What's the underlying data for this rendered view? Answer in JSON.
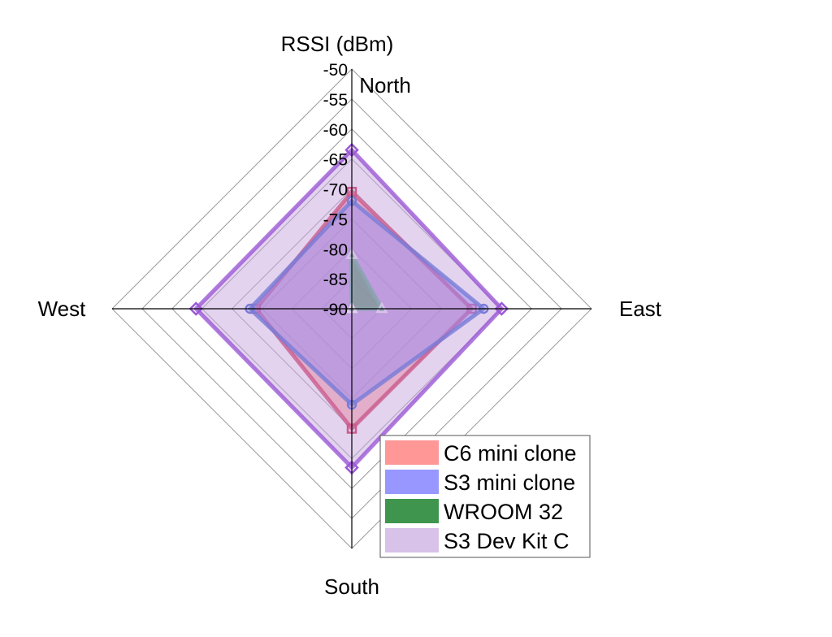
{
  "chart_data": {
    "type": "radar",
    "title": "",
    "radial_axis_label": "RSSI (dBm)",
    "directions": [
      "North",
      "East",
      "South",
      "West"
    ],
    "rlim": [
      -90,
      -50
    ],
    "ticks": [
      -50,
      -55,
      -60,
      -65,
      -70,
      -75,
      -80,
      -85,
      -90
    ],
    "grid": true,
    "legend_position": "bottom-right",
    "series": [
      {
        "name": "C6 mini clone",
        "values": [
          -70.5,
          -70,
          -70,
          -74
        ],
        "fill": "#ff6b6b",
        "stroke": "#d0103a",
        "marker": "square"
      },
      {
        "name": "S3 mini clone",
        "values": [
          -72,
          -68,
          -74,
          -73
        ],
        "fill": "#6b6bff",
        "stroke": "#2850d0",
        "marker": "circle"
      },
      {
        "name": "WROOM 32",
        "values": [
          -81,
          -85,
          -90,
          -90
        ],
        "fill": "#2a8a3a",
        "stroke": "#4aa080",
        "marker": "triangle"
      },
      {
        "name": "S3 Dev Kit C",
        "values": [
          -63.5,
          -65,
          -63.5,
          -64
        ],
        "fill": "#c8a8e0",
        "stroke": "#9b59d6",
        "marker": "diamond"
      }
    ]
  }
}
